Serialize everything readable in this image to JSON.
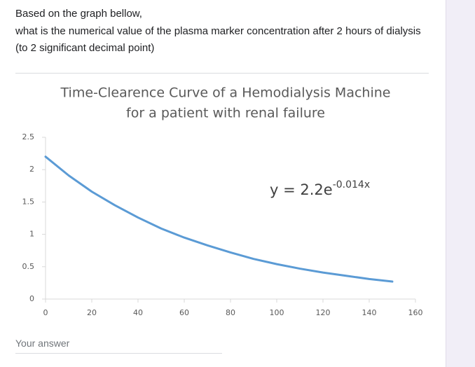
{
  "question": [
    "Based on the graph bellow,",
    "what is the numerical value of the plasma marker concentration after 2 hours of dialysis (to 2 significant decimal point)"
  ],
  "chart_data": {
    "type": "line",
    "title": [
      "Time-Clearence Curve of a Hemodialysis Machine",
      "for a patient with renal failure"
    ],
    "x": [
      0,
      10,
      20,
      30,
      40,
      50,
      60,
      70,
      80,
      90,
      100,
      110,
      120,
      130,
      140,
      150
    ],
    "values": [
      2.2,
      1.91,
      1.66,
      1.45,
      1.26,
      1.09,
      0.95,
      0.83,
      0.72,
      0.62,
      0.54,
      0.47,
      0.41,
      0.36,
      0.31,
      0.27
    ],
    "color": "#5b9bd5",
    "xlim": [
      0,
      160
    ],
    "xticks": [
      0,
      20,
      40,
      60,
      80,
      100,
      120,
      140,
      160
    ],
    "ylim": [
      0,
      2.5
    ],
    "yticks": [
      0,
      0.5,
      1,
      1.5,
      2,
      2.5
    ],
    "annotation": {
      "text": "y = 2.2e",
      "superscript": "-0.014x"
    }
  },
  "answer_placeholder": "Your answer"
}
